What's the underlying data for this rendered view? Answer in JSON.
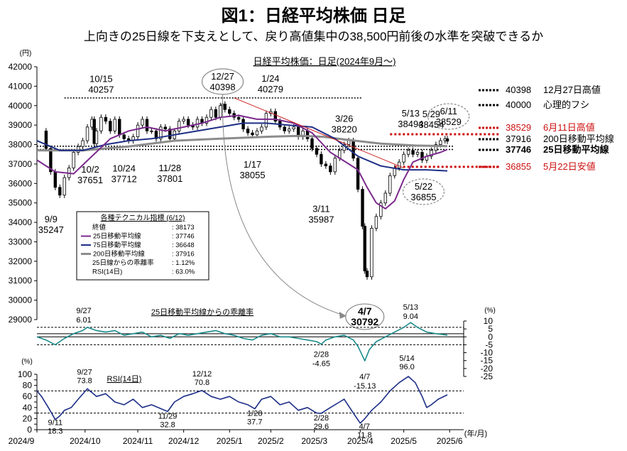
{
  "header": {
    "title": "図1：日経平均株価 日足",
    "subtitle": "上向きの25日線を下支えとして、戻り高値集中の38,500円前後の水準を突破できるか"
  },
  "colors": {
    "candle": "#000000",
    "ma25": "#7b2a8c",
    "ma75": "#1c2e86",
    "ma200": "#8c8c8c",
    "divergence": "#1a8a8a",
    "rsi": "#1c2e86",
    "trendline": "#cc2222",
    "highlight_red": "#cc1111"
  },
  "chart_data": [
    {
      "type": "candlestick",
      "title": "日経平均株価：日足(2024年9月～)",
      "yunit": "(円)",
      "ylim": [
        29000,
        42000
      ],
      "yticks": [
        "29000",
        "30000",
        "31000",
        "32000",
        "33000",
        "34000",
        "35000",
        "36000",
        "37000",
        "38000",
        "39000",
        "40000",
        "41000",
        "42000"
      ],
      "xticks": [
        "2024/9",
        "2024/10",
        "2024/11",
        "2024/12",
        "2025/1",
        "2025/2",
        "2025/3",
        "2025/4",
        "2025/5",
        "2025/6"
      ],
      "xunit": "(年/月)",
      "closes": [
        [
          0,
          38700
        ],
        [
          4,
          37800
        ],
        [
          6,
          36600
        ],
        [
          8,
          35800
        ],
        [
          10,
          35400
        ],
        [
          12,
          36300
        ],
        [
          14,
          36800
        ],
        [
          16,
          37600
        ],
        [
          18,
          37900
        ],
        [
          20,
          38200
        ],
        [
          22,
          38900
        ],
        [
          24,
          39300
        ],
        [
          25,
          38050
        ],
        [
          26,
          38700
        ],
        [
          28,
          39400
        ],
        [
          30,
          39200
        ],
        [
          32,
          38700
        ],
        [
          34,
          39300
        ],
        [
          36,
          38500
        ],
        [
          38,
          38300
        ],
        [
          40,
          38200
        ],
        [
          42,
          38400
        ],
        [
          44,
          39000
        ],
        [
          46,
          39300
        ],
        [
          48,
          38700
        ],
        [
          50,
          38700
        ],
        [
          52,
          38300
        ],
        [
          54,
          38900
        ],
        [
          56,
          38800
        ],
        [
          58,
          38300
        ],
        [
          60,
          38700
        ],
        [
          62,
          39200
        ],
        [
          64,
          39300
        ],
        [
          66,
          39000
        ],
        [
          68,
          38900
        ],
        [
          70,
          39300
        ],
        [
          72,
          39100
        ],
        [
          74,
          39400
        ],
        [
          76,
          39800
        ],
        [
          78,
          39400
        ],
        [
          80,
          40000
        ],
        [
          81,
          40080
        ],
        [
          82,
          39800
        ],
        [
          84,
          39600
        ],
        [
          86,
          39400
        ],
        [
          88,
          39300
        ],
        [
          90,
          38800
        ],
        [
          92,
          38600
        ],
        [
          94,
          38500
        ],
        [
          96,
          38700
        ],
        [
          98,
          38900
        ],
        [
          100,
          39600
        ],
        [
          102,
          39700
        ],
        [
          104,
          39200
        ],
        [
          106,
          38900
        ],
        [
          108,
          38700
        ],
        [
          110,
          38800
        ],
        [
          112,
          38900
        ],
        [
          114,
          38400
        ],
        [
          116,
          38700
        ],
        [
          118,
          38300
        ],
        [
          120,
          37800
        ],
        [
          122,
          37500
        ],
        [
          124,
          37000
        ],
        [
          126,
          36900
        ],
        [
          128,
          36600
        ],
        [
          130,
          37300
        ],
        [
          132,
          37700
        ],
        [
          134,
          38000
        ],
        [
          136,
          38200
        ],
        [
          138,
          37300
        ],
        [
          140,
          35700
        ],
        [
          142,
          33800
        ],
        [
          143,
          31500
        ],
        [
          144,
          31200
        ],
        [
          146,
          33700
        ],
        [
          148,
          34300
        ],
        [
          150,
          35000
        ],
        [
          152,
          35500
        ],
        [
          154,
          36400
        ],
        [
          156,
          36800
        ],
        [
          158,
          37100
        ],
        [
          160,
          37500
        ],
        [
          162,
          37700
        ],
        [
          164,
          37500
        ],
        [
          166,
          37600
        ],
        [
          168,
          37200
        ],
        [
          170,
          37400
        ],
        [
          172,
          37700
        ],
        [
          174,
          38000
        ],
        [
          176,
          38200
        ],
        [
          178,
          38300
        ],
        [
          179,
          38173
        ]
      ],
      "ma25": [
        [
          0,
          37200
        ],
        [
          8,
          36600
        ],
        [
          16,
          36500
        ],
        [
          24,
          37400
        ],
        [
          32,
          38300
        ],
        [
          40,
          38700
        ],
        [
          48,
          38900
        ],
        [
          56,
          38700
        ],
        [
          64,
          38900
        ],
        [
          72,
          39100
        ],
        [
          80,
          39400
        ],
        [
          88,
          39500
        ],
        [
          96,
          39300
        ],
        [
          104,
          39300
        ],
        [
          112,
          39100
        ],
        [
          120,
          38600
        ],
        [
          128,
          37600
        ],
        [
          136,
          37000
        ],
        [
          140,
          36700
        ],
        [
          144,
          35800
        ],
        [
          148,
          35000
        ],
        [
          152,
          34700
        ],
        [
          156,
          35100
        ],
        [
          160,
          36200
        ],
        [
          164,
          37100
        ],
        [
          170,
          37400
        ],
        [
          176,
          37600
        ],
        [
          179,
          37746
        ]
      ],
      "ma75": [
        [
          0,
          38200
        ],
        [
          10,
          37700
        ],
        [
          20,
          37700
        ],
        [
          30,
          38000
        ],
        [
          40,
          38200
        ],
        [
          50,
          38300
        ],
        [
          60,
          38500
        ],
        [
          70,
          38700
        ],
        [
          80,
          38900
        ],
        [
          90,
          39100
        ],
        [
          100,
          39100
        ],
        [
          110,
          39000
        ],
        [
          120,
          38900
        ],
        [
          130,
          38300
        ],
        [
          140,
          37400
        ],
        [
          150,
          36900
        ],
        [
          160,
          36700
        ],
        [
          170,
          36700
        ],
        [
          179,
          36648
        ]
      ],
      "ma200": [
        [
          0,
          37700
        ],
        [
          20,
          37700
        ],
        [
          40,
          37900
        ],
        [
          60,
          38200
        ],
        [
          80,
          38300
        ],
        [
          100,
          38400
        ],
        [
          115,
          38450
        ],
        [
          125,
          38400
        ],
        [
          135,
          38250
        ],
        [
          150,
          38050
        ],
        [
          165,
          37950
        ],
        [
          179,
          37916
        ]
      ],
      "trendline": [
        [
          86,
          40400
        ],
        [
          160,
          36800
        ]
      ],
      "ref_lines": [
        {
          "value": 40398,
          "label": "40398",
          "desc": "12月27日高値",
          "style": "dotted",
          "color": "#000000"
        },
        {
          "value": 40000,
          "label": "40000",
          "desc": "心理的フシ",
          "style": "dotted",
          "color": "#000000"
        },
        {
          "value": 38529,
          "label": "38529",
          "desc": "6月11日高値",
          "style": "dotted",
          "color": "#cc1111"
        },
        {
          "value": 37916,
          "label": "37916",
          "desc": "200日移動平均線",
          "style": "dotted",
          "color": "#000000"
        },
        {
          "value": 37746,
          "label": "37746",
          "desc": "25日移動平均線",
          "style": "dotted",
          "color": "#000000"
        },
        {
          "value": 36855,
          "label": "36855",
          "desc": "5月22日安値",
          "style": "dotted",
          "color": "#cc1111"
        }
      ],
      "annotations": [
        {
          "date": "10/15",
          "value": "40257",
          "x": 28,
          "y": 40257
        },
        {
          "date": "12/27",
          "value": "40398",
          "x": 81,
          "y": 40398
        },
        {
          "date": "1/24",
          "value": "40279",
          "x": 100,
          "y": 40279
        },
        {
          "date": "3/26",
          "value": "38220",
          "x": 134,
          "y": 38220
        },
        {
          "date": "5/13",
          "value": "38494",
          "x": 163,
          "y": 38494
        },
        {
          "date": "5/29",
          "value": "38454",
          "x": 172,
          "y": 38454
        },
        {
          "date": "6/11",
          "value": "38529",
          "x": 178,
          "y": 38529
        },
        {
          "date": "9/9",
          "value": "35247",
          "x": 8,
          "y": 35247
        },
        {
          "date": "10/2",
          "value": "37651",
          "x": 22,
          "y": 37651
        },
        {
          "date": "10/24",
          "value": "37712",
          "x": 38,
          "y": 37712
        },
        {
          "date": "11/28",
          "value": "37801",
          "x": 58,
          "y": 37801
        },
        {
          "date": "1/17",
          "value": "38055",
          "x": 94,
          "y": 38055
        },
        {
          "date": "3/11",
          "value": "35987",
          "x": 124,
          "y": 35987
        },
        {
          "date": "5/22",
          "value": "36855",
          "x": 168,
          "y": 36855
        },
        {
          "date": "4/7",
          "value": "30792",
          "x": 143,
          "y": 30792
        }
      ],
      "indicator_box": {
        "title": "各種テクニカル指標 (6/12)",
        "rows": [
          {
            "name": "終値",
            "value": ": 38173"
          },
          {
            "name": "25日移動平均線",
            "value": ": 37746"
          },
          {
            "name": "75日移動平均線",
            "value": ": 36648"
          },
          {
            "name": "200日移動平均線",
            "value": ": 37916"
          },
          {
            "name": "25日線からの乖離率",
            "value": ": 1.12%"
          },
          {
            "name": "RSI(14日)",
            "value": ": 63.0%"
          }
        ]
      }
    },
    {
      "type": "line",
      "title": "25日移動平均線からの乖離率",
      "yunit": "(%)",
      "ylim": [
        -25,
        10
      ],
      "yticks": [
        "10",
        "5",
        "0",
        "-5",
        "-10",
        "-15",
        "-20",
        "-25"
      ],
      "ref_lines": [
        6,
        2,
        0,
        -5
      ],
      "series": [
        [
          0,
          0
        ],
        [
          4,
          -2
        ],
        [
          8,
          -5
        ],
        [
          12,
          -1
        ],
        [
          16,
          2
        ],
        [
          20,
          4
        ],
        [
          22,
          6
        ],
        [
          26,
          4
        ],
        [
          30,
          3
        ],
        [
          34,
          4
        ],
        [
          38,
          1
        ],
        [
          42,
          2
        ],
        [
          46,
          3
        ],
        [
          50,
          0
        ],
        [
          54,
          1
        ],
        [
          58,
          -1
        ],
        [
          62,
          2
        ],
        [
          66,
          1
        ],
        [
          70,
          2
        ],
        [
          74,
          3
        ],
        [
          78,
          4
        ],
        [
          82,
          2
        ],
        [
          86,
          1
        ],
        [
          90,
          -1
        ],
        [
          94,
          -2
        ],
        [
          98,
          1
        ],
        [
          102,
          2
        ],
        [
          106,
          0
        ],
        [
          110,
          0
        ],
        [
          114,
          -1
        ],
        [
          118,
          -2
        ],
        [
          122,
          -3
        ],
        [
          124,
          -4.65
        ],
        [
          126,
          -2
        ],
        [
          130,
          0
        ],
        [
          134,
          1
        ],
        [
          138,
          -2
        ],
        [
          140,
          -6
        ],
        [
          143,
          -15.13
        ],
        [
          145,
          -8
        ],
        [
          148,
          -3
        ],
        [
          152,
          0
        ],
        [
          156,
          3
        ],
        [
          160,
          6
        ],
        [
          163,
          9.04
        ],
        [
          166,
          6
        ],
        [
          170,
          3
        ],
        [
          174,
          2
        ],
        [
          179,
          1.12
        ]
      ],
      "annotations": [
        {
          "date": "9/27",
          "value": "6.01",
          "x": 22,
          "y": 6.01
        },
        {
          "date": "2/28",
          "value": "-4.65",
          "x": 124,
          "y": -4.65
        },
        {
          "date": "4/7",
          "value": "-15.13",
          "x": 143,
          "y": -15.13
        },
        {
          "date": "5/13",
          "value": "9.04",
          "x": 163,
          "y": 9.04
        }
      ]
    },
    {
      "type": "line",
      "title": "RSI(14日)",
      "yunit": "(%)",
      "ylim": [
        0,
        100
      ],
      "yticks": [
        "0",
        "10",
        "20",
        "30",
        "40",
        "50",
        "60",
        "70",
        "80",
        "90",
        "100"
      ],
      "ref_lines": [
        70,
        30
      ],
      "series": [
        [
          0,
          70
        ],
        [
          2,
          60
        ],
        [
          5,
          40
        ],
        [
          8,
          18.3
        ],
        [
          10,
          25
        ],
        [
          12,
          35
        ],
        [
          15,
          40
        ],
        [
          18,
          55
        ],
        [
          22,
          73.8
        ],
        [
          26,
          60
        ],
        [
          30,
          65
        ],
        [
          34,
          50
        ],
        [
          38,
          45
        ],
        [
          42,
          55
        ],
        [
          46,
          40
        ],
        [
          50,
          45
        ],
        [
          54,
          38
        ],
        [
          57,
          32.8
        ],
        [
          60,
          50
        ],
        [
          64,
          60
        ],
        [
          68,
          65
        ],
        [
          72,
          70.8
        ],
        [
          76,
          60
        ],
        [
          80,
          55
        ],
        [
          84,
          60
        ],
        [
          88,
          50
        ],
        [
          92,
          45
        ],
        [
          95,
          37.7
        ],
        [
          98,
          55
        ],
        [
          102,
          60
        ],
        [
          106,
          45
        ],
        [
          110,
          50
        ],
        [
          114,
          35
        ],
        [
          118,
          40
        ],
        [
          122,
          30
        ],
        [
          124,
          29.6
        ],
        [
          128,
          40
        ],
        [
          132,
          50
        ],
        [
          134,
          55
        ],
        [
          138,
          30
        ],
        [
          141,
          11.8
        ],
        [
          143,
          20
        ],
        [
          146,
          35
        ],
        [
          150,
          50
        ],
        [
          154,
          70
        ],
        [
          158,
          85
        ],
        [
          162,
          96
        ],
        [
          165,
          85
        ],
        [
          168,
          60
        ],
        [
          170,
          40
        ],
        [
          172,
          45
        ],
        [
          175,
          55
        ],
        [
          179,
          63
        ]
      ],
      "annotations": [
        {
          "date": "9/11",
          "value": "18.3",
          "x": 8,
          "y": 18.3
        },
        {
          "date": "9/27",
          "value": "73.8",
          "x": 22,
          "y": 73.8
        },
        {
          "date": "11/29",
          "value": "32.8",
          "x": 57,
          "y": 32.8
        },
        {
          "date": "12/12",
          "value": "70.8",
          "x": 72,
          "y": 70.8
        },
        {
          "date": "1/28",
          "value": "37.7",
          "x": 95,
          "y": 37.7
        },
        {
          "date": "2/28",
          "value": "29.6",
          "x": 124,
          "y": 29.6
        },
        {
          "date": "4/7",
          "value": "11.8",
          "x": 141,
          "y": 11.8
        },
        {
          "date": "5/14",
          "value": "96.0",
          "x": 162,
          "y": 96.0
        }
      ]
    }
  ]
}
